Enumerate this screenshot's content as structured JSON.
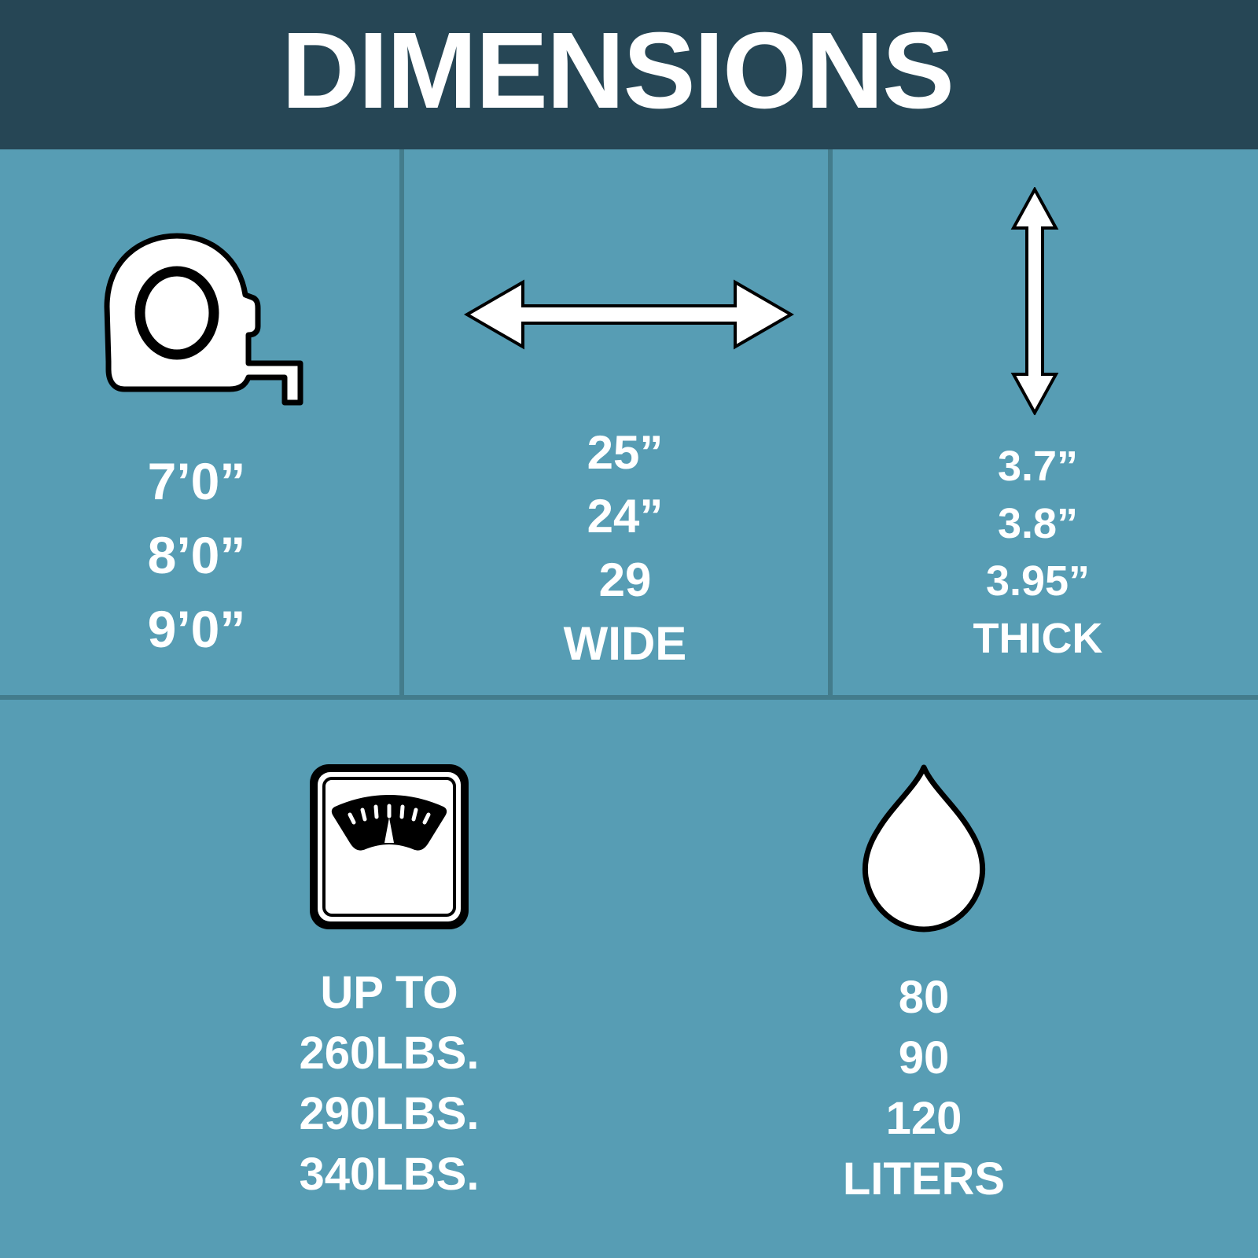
{
  "title": "DIMENSIONS",
  "colors": {
    "header": "#264655",
    "background": "#579db4",
    "divider": "#437c8c",
    "text": "#ffffff"
  },
  "panels": [
    {
      "icon": "tape-measure-icon",
      "lines": [
        "7’0”",
        "8’0”",
        "9’0”"
      ]
    },
    {
      "icon": "horizontal-double-arrow-icon",
      "lines": [
        "25”",
        "24”",
        "29",
        "WIDE"
      ]
    },
    {
      "icon": "vertical-double-arrow-icon",
      "lines": [
        "3.7”",
        "3.8”",
        "3.95”",
        "THICK"
      ]
    },
    {
      "icon": "weight-scale-icon",
      "lines": [
        "UP TO",
        "260LBS.",
        "290LBS.",
        "340LBS."
      ]
    },
    {
      "icon": "water-drop-icon",
      "lines": [
        "80",
        "90",
        "120",
        "LITERS"
      ]
    }
  ]
}
